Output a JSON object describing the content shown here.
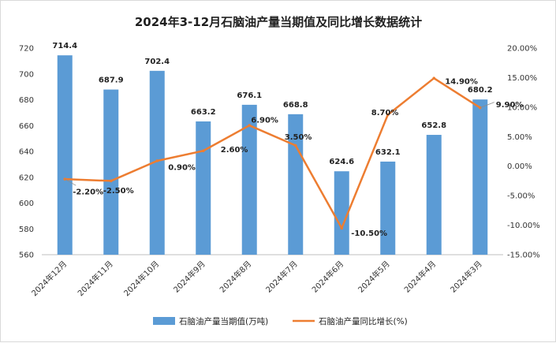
{
  "chart_data": {
    "type": "bar+line",
    "title": "2024年3-12月石脑油产量当期值及同比增长数据统计",
    "categories": [
      "2024年12月",
      "2024年11月",
      "2024年10月",
      "2024年9月",
      "2024年8月",
      "2024年7月",
      "2024年6月",
      "2024年5月",
      "2024年4月",
      "2024年3月"
    ],
    "series": [
      {
        "name": "石脑油产量当期值(万吨)",
        "type": "bar",
        "axis": "left",
        "color": "#5b9bd5",
        "values": [
          714.4,
          687.9,
          702.4,
          663.2,
          676.1,
          668.8,
          624.6,
          632.1,
          652.8,
          680.2
        ],
        "labels": [
          "714.4",
          "687.9",
          "702.4",
          "663.2",
          "676.1",
          "668.8",
          "624.6",
          "632.1",
          "652.8",
          "680.2"
        ]
      },
      {
        "name": "石脑油产量同比增长(%)",
        "type": "line",
        "axis": "right",
        "color": "#ed7d31",
        "values": [
          -2.2,
          -2.5,
          0.9,
          2.6,
          6.9,
          3.5,
          -10.5,
          8.7,
          14.9,
          9.9
        ],
        "labels": [
          "-2.20%",
          "-2.50%",
          "0.90%",
          "2.60%",
          "6.90%",
          "3.50%",
          "-10.50%",
          "8.70%",
          "14.90%",
          "9.90%"
        ]
      }
    ],
    "y_left": {
      "min": 560,
      "max": 720,
      "step": 20,
      "ticks": [
        "560",
        "580",
        "600",
        "620",
        "640",
        "660",
        "680",
        "700",
        "720"
      ]
    },
    "y_right": {
      "min": -15,
      "max": 20,
      "step": 5,
      "ticks": [
        "-15.00%",
        "-10.00%",
        "-5.00%",
        "0.00%",
        "5.00%",
        "10.00%",
        "15.00%",
        "20.00%"
      ]
    },
    "legend_position": "bottom",
    "grid": false
  }
}
